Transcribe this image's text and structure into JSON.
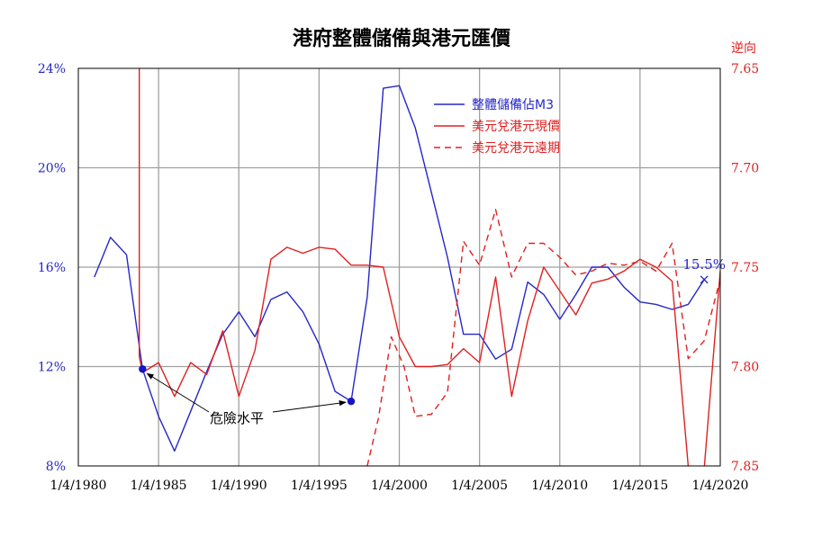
{
  "chart_data": {
    "type": "line",
    "title": "港府整體儲備與港元匯價",
    "right_axis_label": "逆向",
    "x_ticks": [
      "1/4/1980",
      "1/4/1985",
      "1/4/1990",
      "1/4/1995",
      "1/4/2000",
      "1/4/2005",
      "1/4/2010",
      "1/4/2015",
      "1/4/2020"
    ],
    "x_range": [
      1980,
      2020
    ],
    "y_left": {
      "ticks": [
        "8%",
        "12%",
        "16%",
        "20%",
        "24%"
      ],
      "range": [
        8,
        24
      ],
      "color": "#2626c8"
    },
    "y_right": {
      "ticks": [
        "7.65",
        "7.70",
        "7.75",
        "7.80",
        "7.85"
      ],
      "range": [
        7.65,
        7.85
      ],
      "inverted": true,
      "color": "#e02020"
    },
    "grid": true,
    "legend": {
      "placement": "top-center"
    },
    "series": [
      {
        "name": "整體儲備佔M3",
        "axis": "left",
        "color": "#2626c8",
        "style": "solid",
        "x": [
          1981,
          1982,
          1983,
          1984,
          1985,
          1986,
          1987,
          1988,
          1989,
          1990,
          1991,
          1992,
          1993,
          1994,
          1995,
          1996,
          1997,
          1998,
          1999,
          2000,
          2001,
          2002,
          2003,
          2004,
          2005,
          2006,
          2007,
          2008,
          2009,
          2010,
          2011,
          2012,
          2013,
          2014,
          2015,
          2016,
          2017,
          2018,
          2019
        ],
        "y": [
          15.6,
          17.2,
          16.5,
          11.9,
          10.0,
          8.6,
          10.2,
          11.8,
          13.3,
          14.2,
          13.2,
          14.7,
          15.0,
          14.2,
          12.9,
          11.0,
          10.6,
          14.8,
          23.2,
          23.3,
          21.6,
          19.0,
          16.4,
          13.3,
          13.3,
          12.3,
          12.7,
          15.4,
          14.9,
          13.9,
          14.9,
          16.0,
          16.0,
          15.2,
          14.6,
          14.5,
          14.3,
          14.5,
          15.5
        ]
      },
      {
        "name": "美元兌港元現價",
        "axis": "right",
        "color": "#e02020",
        "style": "solid",
        "x": [
          1983.8,
          1983.8,
          1984,
          1985,
          1986,
          1987,
          1988,
          1989,
          1990,
          1991,
          1992,
          1993,
          1994,
          1995,
          1996,
          1997,
          1998,
          1999,
          2000,
          2001,
          2002,
          2003,
          2004,
          2005,
          2006,
          2007,
          2008,
          2009,
          2010,
          2011,
          2012,
          2013,
          2014,
          2015,
          2016,
          2017,
          2018,
          2019,
          2020
        ],
        "y": [
          7.65,
          7.795,
          7.803,
          7.798,
          7.815,
          7.798,
          7.804,
          7.782,
          7.815,
          7.792,
          7.746,
          7.74,
          7.743,
          7.74,
          7.741,
          7.749,
          7.749,
          7.75,
          7.785,
          7.8,
          7.8,
          7.799,
          7.791,
          7.798,
          7.755,
          7.815,
          7.777,
          7.75,
          7.762,
          7.774,
          7.758,
          7.756,
          7.752,
          7.746,
          7.75,
          7.757,
          7.85,
          7.851,
          7.752
        ]
      },
      {
        "name": "美元兌港元遠期",
        "axis": "right",
        "color": "#e02020",
        "style": "dashed",
        "x": [
          1998,
          1998.7,
          1999.5,
          2000.3,
          2001,
          2002,
          2003,
          2004,
          2005,
          2006,
          2007,
          2008,
          2009,
          2010,
          2011,
          2012,
          2013,
          2014,
          2015,
          2016,
          2017,
          2018,
          2019,
          2020
        ],
        "y": [
          7.85,
          7.826,
          7.785,
          7.8,
          7.825,
          7.824,
          7.813,
          7.737,
          7.749,
          7.721,
          7.755,
          7.738,
          7.738,
          7.745,
          7.754,
          7.752,
          7.748,
          7.749,
          7.747,
          7.752,
          7.738,
          7.796,
          7.787,
          7.756
        ]
      }
    ],
    "annotations": [
      {
        "text": "危險水平",
        "points": [
          {
            "x": 1984,
            "y": 11.9
          },
          {
            "x": 1997,
            "y": 10.6
          }
        ]
      },
      {
        "text": "15.5%",
        "point": {
          "x": 2019,
          "y": 15.5
        }
      }
    ]
  }
}
